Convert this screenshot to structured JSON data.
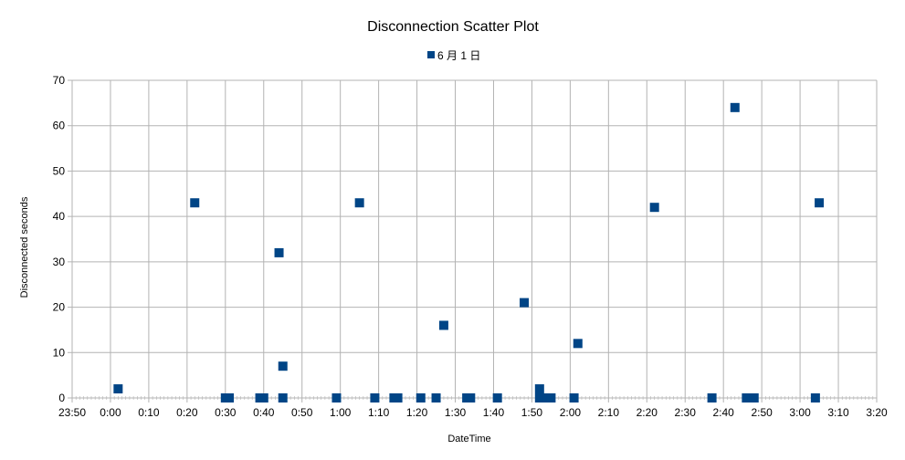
{
  "chart_data": {
    "type": "scatter",
    "title": "Disconnection Scatter Plot",
    "xlabel": "DateTime",
    "ylabel": "Disconnected seconds",
    "x_ticks": [
      "23:50",
      "0:00",
      "0:10",
      "0:20",
      "0:30",
      "0:40",
      "0:50",
      "1:00",
      "1:10",
      "1:20",
      "1:30",
      "1:40",
      "1:50",
      "2:00",
      "2:10",
      "2:20",
      "2:30",
      "2:40",
      "2:50",
      "3:00",
      "3:10",
      "3:20"
    ],
    "xlim": [
      "23:50",
      "3:20"
    ],
    "ylim": [
      0,
      70
    ],
    "y_ticks": [
      0,
      10,
      20,
      30,
      40,
      50,
      60,
      70
    ],
    "grid": true,
    "legend_position": "top-center",
    "series": [
      {
        "name": "6 月 1 日",
        "color": "#004586",
        "marker": "square",
        "points": [
          {
            "x": "0:02",
            "y": 2
          },
          {
            "x": "0:22",
            "y": 43
          },
          {
            "x": "0:30",
            "y": 0
          },
          {
            "x": "0:31",
            "y": 0
          },
          {
            "x": "0:39",
            "y": 0
          },
          {
            "x": "0:40",
            "y": 0
          },
          {
            "x": "0:44",
            "y": 32
          },
          {
            "x": "0:45",
            "y": 7
          },
          {
            "x": "0:45",
            "y": 0
          },
          {
            "x": "0:59",
            "y": 0
          },
          {
            "x": "1:05",
            "y": 43
          },
          {
            "x": "1:09",
            "y": 0
          },
          {
            "x": "1:14",
            "y": 0
          },
          {
            "x": "1:15",
            "y": 0
          },
          {
            "x": "1:21",
            "y": 0
          },
          {
            "x": "1:25",
            "y": 0
          },
          {
            "x": "1:27",
            "y": 16
          },
          {
            "x": "1:33",
            "y": 0
          },
          {
            "x": "1:34",
            "y": 0
          },
          {
            "x": "1:41",
            "y": 0
          },
          {
            "x": "1:48",
            "y": 21
          },
          {
            "x": "1:52",
            "y": 2
          },
          {
            "x": "1:52",
            "y": 0
          },
          {
            "x": "1:53",
            "y": 0
          },
          {
            "x": "1:54",
            "y": 0
          },
          {
            "x": "1:55",
            "y": 0
          },
          {
            "x": "2:01",
            "y": 0
          },
          {
            "x": "2:02",
            "y": 12
          },
          {
            "x": "2:22",
            "y": 42
          },
          {
            "x": "2:37",
            "y": 0
          },
          {
            "x": "2:43",
            "y": 64
          },
          {
            "x": "2:46",
            "y": 0
          },
          {
            "x": "2:47",
            "y": 0
          },
          {
            "x": "2:48",
            "y": 0
          },
          {
            "x": "3:04",
            "y": 0
          },
          {
            "x": "3:05",
            "y": 43
          }
        ]
      }
    ]
  }
}
